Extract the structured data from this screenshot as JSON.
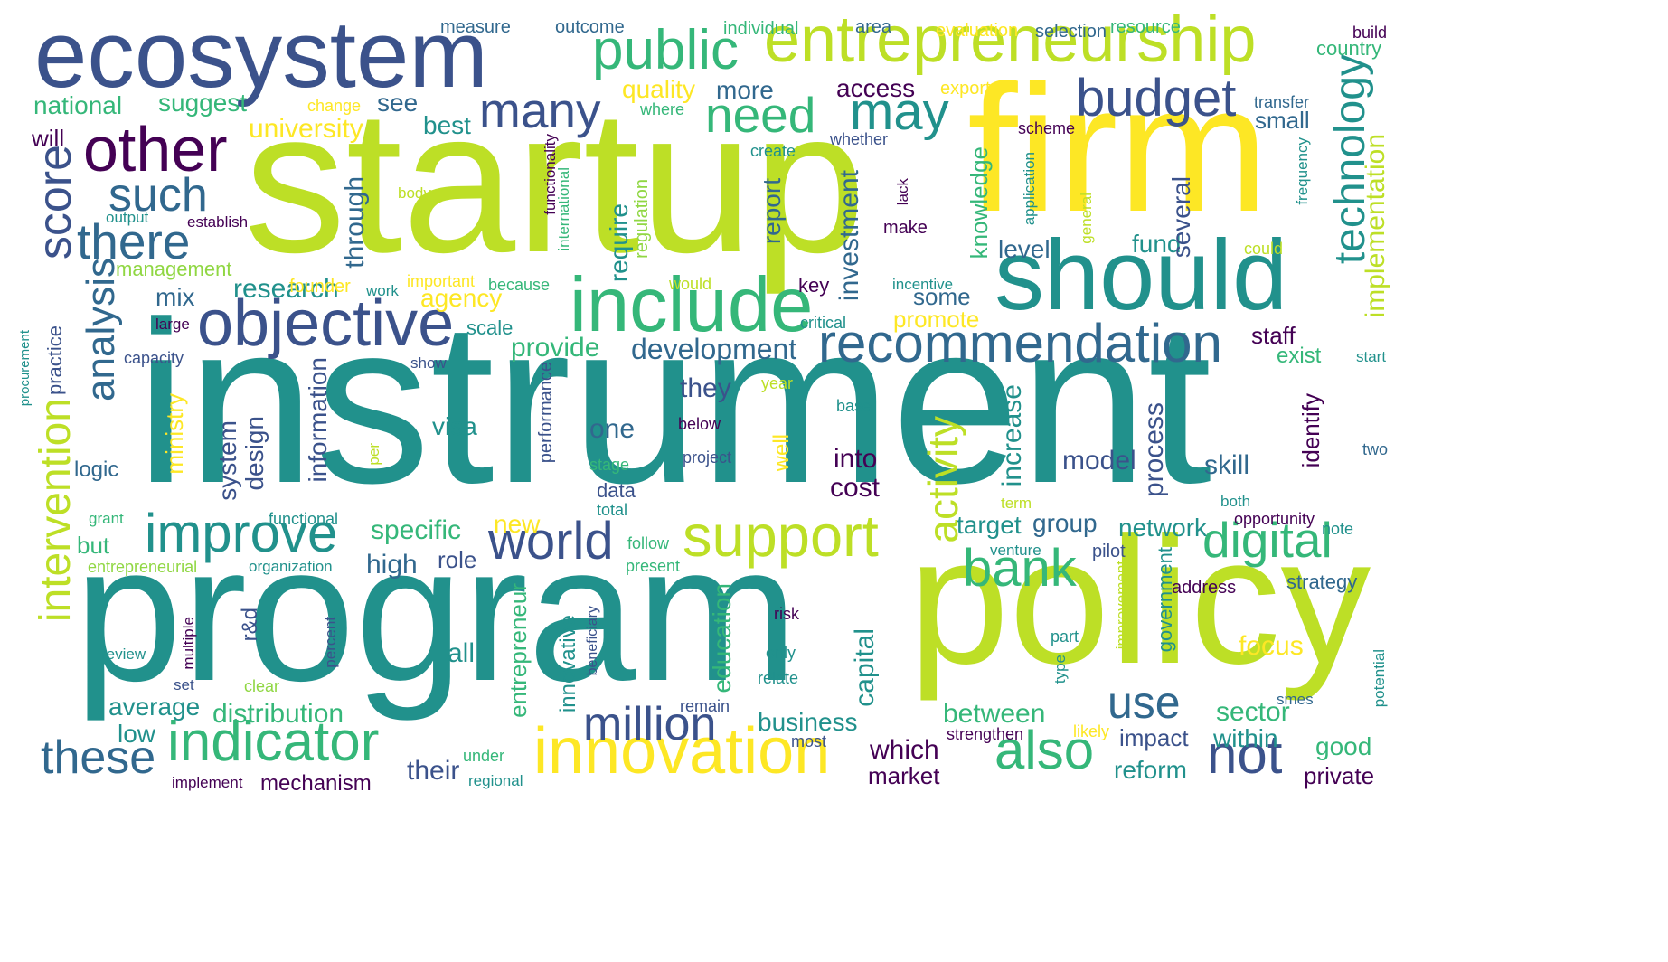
{
  "palette": {
    "purple": "#440154",
    "indigo": "#3b528b",
    "blue": "#31688e",
    "teal": "#21918c",
    "green": "#35b779",
    "lime": "#90d743",
    "yellowgreen": "#bddf26",
    "yellow": "#fde725"
  },
  "cloud": {
    "words": [
      {
        "text": "instrument",
        "color": "teal"
      },
      {
        "text": "startup",
        "color": "yellowgreen"
      },
      {
        "text": "program",
        "color": "teal"
      },
      {
        "text": "policy",
        "color": "yellowgreen"
      },
      {
        "text": "firm",
        "color": "yellow"
      },
      {
        "text": "ecosystem",
        "color": "indigo"
      },
      {
        "text": "entrepreneurship",
        "color": "yellowgreen"
      },
      {
        "text": "should",
        "color": "teal"
      },
      {
        "text": "include",
        "color": "green"
      },
      {
        "text": "objective",
        "color": "indigo"
      },
      {
        "text": "recommendation",
        "color": "blue"
      },
      {
        "text": "innovation",
        "color": "yellow"
      },
      {
        "text": "support",
        "color": "yellowgreen"
      },
      {
        "text": "improve",
        "color": "teal"
      },
      {
        "text": "indicator",
        "color": "green"
      },
      {
        "text": "world",
        "color": "indigo"
      },
      {
        "text": "digital",
        "color": "green"
      },
      {
        "text": "bank",
        "color": "green"
      },
      {
        "text": "public",
        "color": "green"
      },
      {
        "text": "other",
        "color": "purple"
      },
      {
        "text": "many",
        "color": "indigo"
      },
      {
        "text": "may",
        "color": "teal"
      },
      {
        "text": "budget",
        "color": "indigo"
      },
      {
        "text": "need",
        "color": "green"
      },
      {
        "text": "there",
        "color": "blue"
      },
      {
        "text": "such",
        "color": "blue"
      },
      {
        "text": "score",
        "color": "indigo"
      },
      {
        "text": "analysis",
        "color": "blue"
      },
      {
        "text": "intervention",
        "color": "yellowgreen"
      },
      {
        "text": "technology",
        "color": "teal"
      },
      {
        "text": "implementation",
        "color": "yellowgreen"
      },
      {
        "text": "these",
        "color": "blue"
      },
      {
        "text": "million",
        "color": "indigo"
      },
      {
        "text": "also",
        "color": "green"
      },
      {
        "text": "not",
        "color": "indigo"
      },
      {
        "text": "use",
        "color": "blue"
      },
      {
        "text": "activity",
        "color": "yellowgreen"
      },
      {
        "text": "development",
        "color": "blue"
      },
      {
        "text": "research",
        "color": "teal"
      },
      {
        "text": "provide",
        "color": "green"
      },
      {
        "text": "they",
        "color": "indigo"
      },
      {
        "text": "one",
        "color": "blue"
      },
      {
        "text": "visa",
        "color": "teal"
      },
      {
        "text": "specific",
        "color": "green"
      },
      {
        "text": "high",
        "color": "blue"
      },
      {
        "text": "role",
        "color": "indigo"
      },
      {
        "text": "new",
        "color": "yellow"
      },
      {
        "text": "their",
        "color": "indigo"
      },
      {
        "text": "mechanism",
        "color": "purple"
      },
      {
        "text": "distribution",
        "color": "green"
      },
      {
        "text": "average",
        "color": "teal"
      },
      {
        "text": "low",
        "color": "teal"
      },
      {
        "text": "business",
        "color": "teal"
      },
      {
        "text": "which",
        "color": "purple"
      },
      {
        "text": "market",
        "color": "purple"
      },
      {
        "text": "between",
        "color": "green"
      },
      {
        "text": "sector",
        "color": "green"
      },
      {
        "text": "impact",
        "color": "indigo"
      },
      {
        "text": "within",
        "color": "teal"
      },
      {
        "text": "good",
        "color": "green"
      },
      {
        "text": "private",
        "color": "purple"
      },
      {
        "text": "reform",
        "color": "teal"
      },
      {
        "text": "focus",
        "color": "yellow"
      },
      {
        "text": "strategy",
        "color": "blue"
      },
      {
        "text": "address",
        "color": "purple"
      },
      {
        "text": "network",
        "color": "teal"
      },
      {
        "text": "group",
        "color": "blue"
      },
      {
        "text": "target",
        "color": "teal"
      },
      {
        "text": "model",
        "color": "indigo"
      },
      {
        "text": "skill",
        "color": "blue"
      },
      {
        "text": "cost",
        "color": "purple"
      },
      {
        "text": "into",
        "color": "purple"
      },
      {
        "text": "staff",
        "color": "purple"
      },
      {
        "text": "exist",
        "color": "green"
      },
      {
        "text": "start",
        "color": "teal"
      },
      {
        "text": "promote",
        "color": "yellow"
      },
      {
        "text": "some",
        "color": "blue"
      },
      {
        "text": "level",
        "color": "blue"
      },
      {
        "text": "fund",
        "color": "teal"
      },
      {
        "text": "small",
        "color": "blue"
      },
      {
        "text": "access",
        "color": "purple"
      },
      {
        "text": "more",
        "color": "blue"
      },
      {
        "text": "quality",
        "color": "yellow"
      },
      {
        "text": "best",
        "color": "teal"
      },
      {
        "text": "see",
        "color": "blue"
      },
      {
        "text": "national",
        "color": "green"
      },
      {
        "text": "suggest",
        "color": "green"
      },
      {
        "text": "will",
        "color": "purple"
      },
      {
        "text": "university",
        "color": "yellow"
      },
      {
        "text": "management",
        "color": "lime"
      },
      {
        "text": "mix",
        "color": "blue"
      },
      {
        "text": "agency",
        "color": "yellow"
      },
      {
        "text": "scale",
        "color": "teal"
      },
      {
        "text": "logic",
        "color": "blue"
      },
      {
        "text": "but",
        "color": "green"
      },
      {
        "text": "all",
        "color": "teal"
      },
      {
        "text": "measure",
        "color": "blue"
      },
      {
        "text": "outcome",
        "color": "blue"
      },
      {
        "text": "individual",
        "color": "green"
      },
      {
        "text": "area",
        "color": "blue"
      },
      {
        "text": "evaluation",
        "color": "yellow"
      },
      {
        "text": "selection",
        "color": "blue"
      },
      {
        "text": "resource",
        "color": "green"
      },
      {
        "text": "build",
        "color": "purple"
      },
      {
        "text": "country",
        "color": "green"
      },
      {
        "text": "change",
        "color": "yellow"
      },
      {
        "text": "where",
        "color": "green"
      },
      {
        "text": "export",
        "color": "yellow"
      },
      {
        "text": "transfer",
        "color": "blue"
      },
      {
        "text": "scheme",
        "color": "purple"
      },
      {
        "text": "whether",
        "color": "indigo"
      },
      {
        "text": "create",
        "color": "teal"
      },
      {
        "text": "body",
        "color": "yellowgreen"
      },
      {
        "text": "output",
        "color": "teal"
      },
      {
        "text": "establish",
        "color": "purple"
      },
      {
        "text": "work",
        "color": "teal"
      },
      {
        "text": "important",
        "color": "yellow"
      },
      {
        "text": "because",
        "color": "green"
      },
      {
        "text": "would",
        "color": "yellowgreen"
      },
      {
        "text": "incentive",
        "color": "teal"
      },
      {
        "text": "key",
        "color": "purple"
      },
      {
        "text": "critical",
        "color": "teal"
      },
      {
        "text": "make",
        "color": "purple"
      },
      {
        "text": "could",
        "color": "yellowgreen"
      },
      {
        "text": "large",
        "color": "purple"
      },
      {
        "text": "capacity",
        "color": "indigo"
      },
      {
        "text": "show",
        "color": "indigo"
      },
      {
        "text": "founder",
        "color": "yellow"
      },
      {
        "text": "year",
        "color": "yellowgreen"
      },
      {
        "text": "base",
        "color": "teal"
      },
      {
        "text": "below",
        "color": "purple"
      },
      {
        "text": "project",
        "color": "indigo"
      },
      {
        "text": "stage",
        "color": "green"
      },
      {
        "text": "data",
        "color": "indigo"
      },
      {
        "text": "total",
        "color": "teal"
      },
      {
        "text": "term",
        "color": "yellowgreen"
      },
      {
        "text": "both",
        "color": "teal"
      },
      {
        "text": "opportunity",
        "color": "purple"
      },
      {
        "text": "two",
        "color": "blue"
      },
      {
        "text": "note",
        "color": "teal"
      },
      {
        "text": "venture",
        "color": "teal"
      },
      {
        "text": "pilot",
        "color": "indigo"
      },
      {
        "text": "follow",
        "color": "green"
      },
      {
        "text": "present",
        "color": "green"
      },
      {
        "text": "grant",
        "color": "green"
      },
      {
        "text": "functional",
        "color": "teal"
      },
      {
        "text": "entrepreneurial",
        "color": "lime"
      },
      {
        "text": "organization",
        "color": "teal"
      },
      {
        "text": "review",
        "color": "teal"
      },
      {
        "text": "set",
        "color": "indigo"
      },
      {
        "text": "clear",
        "color": "lime"
      },
      {
        "text": "risk",
        "color": "purple"
      },
      {
        "text": "only",
        "color": "teal"
      },
      {
        "text": "relate",
        "color": "teal"
      },
      {
        "text": "remain",
        "color": "indigo"
      },
      {
        "text": "most",
        "color": "indigo"
      },
      {
        "text": "strengthen",
        "color": "purple"
      },
      {
        "text": "likely",
        "color": "yellow"
      },
      {
        "text": "under",
        "color": "green"
      },
      {
        "text": "regional",
        "color": "teal"
      },
      {
        "text": "implement",
        "color": "purple"
      },
      {
        "text": "smes",
        "color": "blue"
      },
      {
        "text": "part",
        "color": "teal"
      },
      {
        "text": "type",
        "color": "teal"
      },
      {
        "text": "improvement",
        "color": "yellowgreen"
      },
      {
        "text": "government",
        "color": "teal"
      },
      {
        "text": "beneficiary",
        "color": "indigo"
      },
      {
        "text": "innovative",
        "color": "teal"
      },
      {
        "text": "entrepreneur",
        "color": "green"
      },
      {
        "text": "education",
        "color": "green"
      },
      {
        "text": "capital",
        "color": "teal"
      },
      {
        "text": "percent",
        "color": "indigo"
      },
      {
        "text": "multiple",
        "color": "purple"
      },
      {
        "text": "r&d",
        "color": "indigo"
      },
      {
        "text": "ministry",
        "color": "yellow"
      },
      {
        "text": "system",
        "color": "indigo"
      },
      {
        "text": "design",
        "color": "indigo"
      },
      {
        "text": "information",
        "color": "indigo"
      },
      {
        "text": "per",
        "color": "yellowgreen"
      },
      {
        "text": "performance",
        "color": "indigo"
      },
      {
        "text": "well",
        "color": "yellow"
      },
      {
        "text": "require",
        "color": "teal"
      },
      {
        "text": "regulation",
        "color": "lime"
      },
      {
        "text": "report",
        "color": "blue"
      },
      {
        "text": "investment",
        "color": "blue"
      },
      {
        "text": "through",
        "color": "blue"
      },
      {
        "text": "lack",
        "color": "purple"
      },
      {
        "text": "knowledge",
        "color": "green"
      },
      {
        "text": "application",
        "color": "teal"
      },
      {
        "text": "general",
        "color": "yellowgreen"
      },
      {
        "text": "several",
        "color": "indigo"
      },
      {
        "text": "frequency",
        "color": "teal"
      },
      {
        "text": "functionality",
        "color": "purple"
      },
      {
        "text": "international",
        "color": "green"
      },
      {
        "text": "practice",
        "color": "indigo"
      },
      {
        "text": "procurement",
        "color": "teal"
      },
      {
        "text": "increase",
        "color": "teal"
      },
      {
        "text": "process",
        "color": "indigo"
      },
      {
        "text": "identify",
        "color": "purple"
      },
      {
        "text": "potential",
        "color": "teal"
      }
    ]
  }
}
